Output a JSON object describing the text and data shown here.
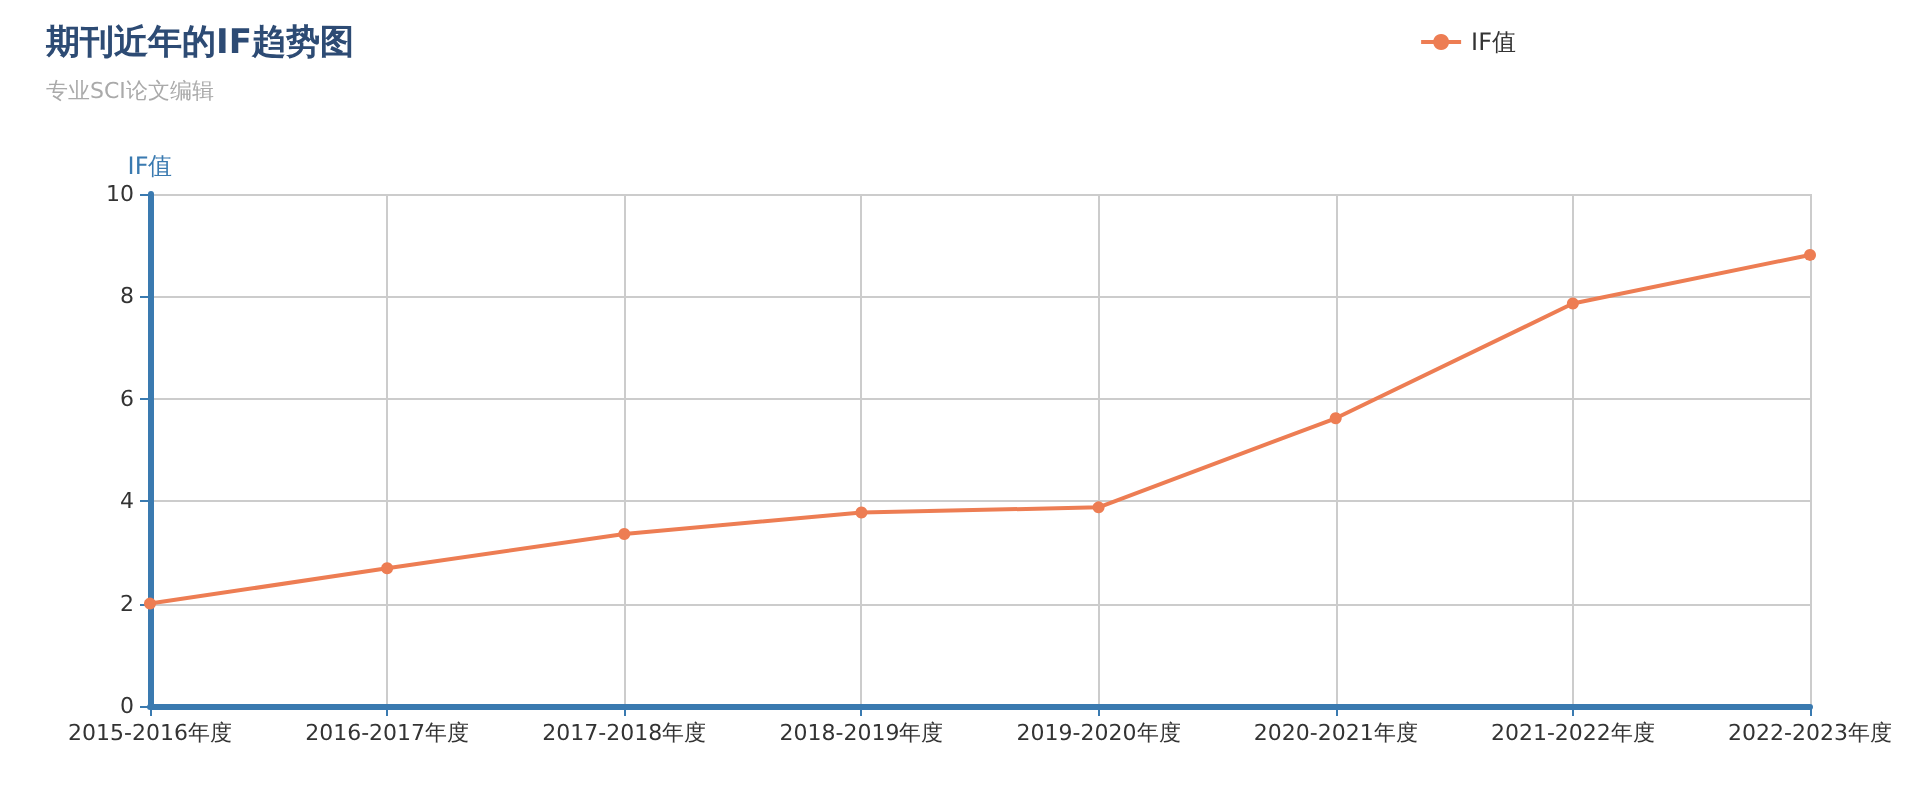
{
  "chart_data": {
    "type": "line",
    "title": "期刊近年的IF趋势图",
    "subtitle": "专业SCI论文编辑",
    "ylabel": "IF值",
    "categories": [
      "2015-2016年度",
      "2016-2017年度",
      "2017-2018年度",
      "2018-2019年度",
      "2019-2020年度",
      "2020-2021年度",
      "2021-2022年度",
      "2022-2023年度"
    ],
    "series": [
      {
        "name": "IF值",
        "color": "#ed7d53",
        "values": [
          2.0,
          2.69,
          3.36,
          3.78,
          3.88,
          5.62,
          7.86,
          8.81
        ]
      }
    ],
    "ylim": [
      0,
      10
    ],
    "yticks": [
      0,
      2,
      4,
      6,
      8,
      10
    ],
    "grid": true,
    "legend": "top right",
    "marker": "circle",
    "line_style": "solid"
  }
}
